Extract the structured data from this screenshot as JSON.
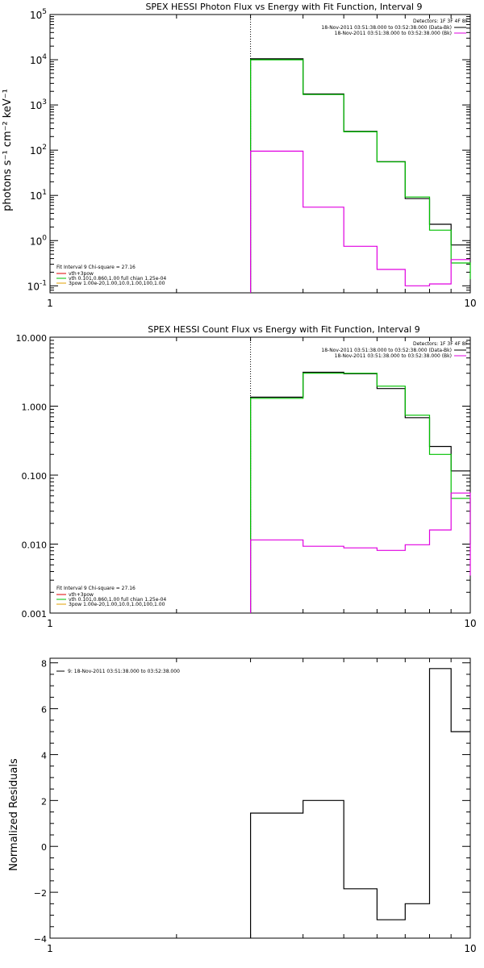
{
  "chart_data": [
    {
      "type": "line",
      "title": "SPEX HESSI Photon Flux vs Energy with Fit Function, Interval 9",
      "ylabel": "photons s⁻¹ cm⁻² keV⁻¹",
      "xlabel": "",
      "xscale": "log",
      "yscale": "log",
      "xlim": [
        1,
        10
      ],
      "ylim": [
        0.07,
        100000
      ],
      "xticks": [
        {
          "value": 1,
          "label": "1"
        },
        {
          "value": 10,
          "label": "10"
        }
      ],
      "yticks": [
        {
          "value": 0.1,
          "base": "10",
          "exp": "-1"
        },
        {
          "value": 1,
          "base": "10",
          "exp": "0"
        },
        {
          "value": 10,
          "base": "10",
          "exp": "1"
        },
        {
          "value": 100,
          "base": "10",
          "exp": "2"
        },
        {
          "value": 1000,
          "base": "10",
          "exp": "3"
        },
        {
          "value": 10000,
          "base": "10",
          "exp": "4"
        },
        {
          "value": 100000,
          "base": "10",
          "exp": "5"
        }
      ],
      "edges": [
        3,
        4,
        5,
        6,
        7,
        8,
        9,
        10
      ],
      "vline": 3,
      "detectors": "Detectors: 1F 3F 4F 8F",
      "legend_top": [
        {
          "text": "18-Nov-2011 03:51:38.000 to 03:52:38.000 (Data-Bk)",
          "color": "#000000"
        },
        {
          "text": "18-Nov-2011 03:51:38.000 to 03:52:38.000 (Bk)",
          "color": "#e000e0"
        }
      ],
      "legend_bottom_title": "Fit Interval 9   Chi-square = 27.16",
      "legend_bottom": [
        {
          "text": "vth+3pow",
          "color": "#e00000"
        },
        {
          "text": "vth 0.101,0.860,1.00  full chian 1.25e-04",
          "color": "#00c000"
        },
        {
          "text": "3pow 1.00e-20,1.00,10.0,1.00,100,1.00",
          "color": "#e0a000"
        }
      ],
      "series": [
        {
          "name": "Data-Bk",
          "color": "#000000",
          "values": [
            10500,
            1750,
            260,
            56,
            8.5,
            2.3,
            0.8
          ]
        },
        {
          "name": "",
          "color": "#00c000",
          "values": [
            10000,
            1700,
            255,
            55,
            9.2,
            1.7,
            0.32,
            0.14
          ]
        },
        {
          "name": "Bk",
          "color": "#e000e0",
          "values": [
            95,
            5.5,
            0.75,
            0.23,
            0.1,
            0.11,
            0.38
          ]
        }
      ]
    },
    {
      "type": "line",
      "title": "SPEX HESSI Count Flux vs Energy with Fit Function, Interval 9",
      "ylabel": "",
      "xlabel": "",
      "xscale": "log",
      "yscale": "log",
      "xlim": [
        1,
        10
      ],
      "ylim": [
        0.001,
        10
      ],
      "xticks": [
        {
          "value": 1,
          "label": "1"
        },
        {
          "value": 10,
          "label": "10"
        }
      ],
      "yticks": [
        {
          "value": 0.001,
          "label": "0.001"
        },
        {
          "value": 0.01,
          "label": "0.010"
        },
        {
          "value": 0.1,
          "label": "0.100"
        },
        {
          "value": 1,
          "label": "1.000"
        },
        {
          "value": 10,
          "label": "10.000"
        }
      ],
      "edges": [
        3,
        4,
        5,
        6,
        7,
        8,
        9,
        10
      ],
      "vline": 3,
      "detectors": "Detectors: 1F 3F 4F 8F",
      "legend_top": [
        {
          "text": "18-Nov-2011 03:51:38.000 to 03:52:38.000 (Data-Bk)",
          "color": "#000000"
        },
        {
          "text": "18-Nov-2011 03:51:38.000 to 03:52:38.000 (Bk)",
          "color": "#e000e0"
        }
      ],
      "legend_bottom_title": "Fit Interval 9   Chi-square = 27.16",
      "legend_bottom": [
        {
          "text": "vth+3pow",
          "color": "#e00000"
        },
        {
          "text": "vth 0.101,0.860,1.00  full chian 1.25e-04",
          "color": "#00c000"
        },
        {
          "text": "3pow 1.00e-20,1.00,10.0,1.00,100,1.00",
          "color": "#e0a000"
        }
      ],
      "series": [
        {
          "name": "Data-Bk",
          "color": "#000000",
          "values": [
            1.35,
            3.1,
            2.95,
            1.8,
            0.68,
            0.26,
            0.115
          ]
        },
        {
          "name": "",
          "color": "#00c000",
          "values": [
            1.3,
            3.0,
            3.0,
            1.95,
            0.74,
            0.2,
            0.046,
            0.01
          ]
        },
        {
          "name": "Bk",
          "color": "#e000e0",
          "values": [
            0.0115,
            0.0093,
            0.0088,
            0.0081,
            0.0098,
            0.016,
            0.055,
            0.0035
          ]
        }
      ]
    },
    {
      "type": "line",
      "title": "",
      "ylabel": "Normalized Residuals",
      "xlabel": "",
      "xscale": "log",
      "yscale": "linear",
      "xlim": [
        1,
        10
      ],
      "ylim": [
        -4,
        8.2
      ],
      "xticks": [
        {
          "value": 1,
          "label": "1"
        },
        {
          "value": 10,
          "label": "10"
        }
      ],
      "yticks": [
        {
          "value": -4,
          "label": "−4"
        },
        {
          "value": -2,
          "label": "−2"
        },
        {
          "value": 0,
          "label": "0"
        },
        {
          "value": 2,
          "label": "2"
        },
        {
          "value": 4,
          "label": "4"
        },
        {
          "value": 6,
          "label": "6"
        },
        {
          "value": 8,
          "label": "8"
        }
      ],
      "edges": [
        3,
        4,
        5,
        6,
        7,
        8,
        9,
        10
      ],
      "legend_top": [
        {
          "text": "9: 18-Nov-2011 03:51:38.000 to 03:52:38.000",
          "color": "#000000"
        }
      ],
      "series": [
        {
          "name": "",
          "color": "#000000",
          "values": [
            1.45,
            2.0,
            -1.85,
            -3.2,
            -2.5,
            7.75,
            5.0
          ]
        }
      ]
    }
  ]
}
